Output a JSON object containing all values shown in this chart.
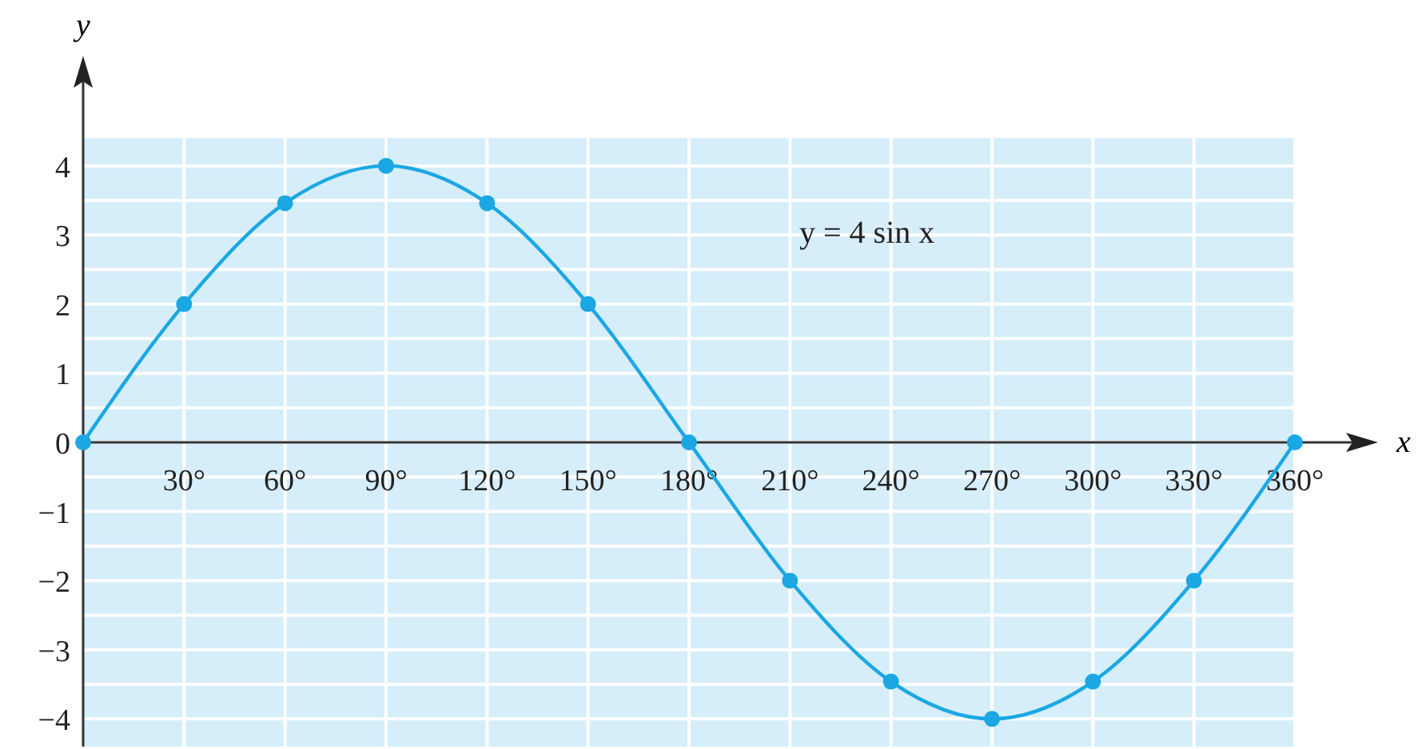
{
  "chart_data": {
    "type": "line",
    "xlabel": "x",
    "ylabel": "y",
    "x": [
      0,
      30,
      60,
      90,
      120,
      150,
      180,
      210,
      240,
      270,
      300,
      330,
      360
    ],
    "series": [
      {
        "color": "#1aa7e4",
        "values": [
          0,
          2,
          3.46,
          4,
          3.46,
          2,
          0,
          -2,
          -3.46,
          -4,
          -3.46,
          -2,
          0
        ]
      }
    ],
    "xlim": [
      0,
      360
    ],
    "ylim": [
      -4.4,
      4.4
    ],
    "xticks": [
      {
        "value": 30,
        "label": "30°"
      },
      {
        "value": 60,
        "label": "60°"
      },
      {
        "value": 90,
        "label": "90°"
      },
      {
        "value": 120,
        "label": "120°"
      },
      {
        "value": 150,
        "label": "150°"
      },
      {
        "value": 180,
        "label": "180°"
      },
      {
        "value": 210,
        "label": "210°"
      },
      {
        "value": 240,
        "label": "240°"
      },
      {
        "value": 270,
        "label": "270°"
      },
      {
        "value": 300,
        "label": "300°"
      },
      {
        "value": 330,
        "label": "330°"
      },
      {
        "value": 360,
        "label": "360°"
      }
    ],
    "yticks": [
      {
        "value": -4,
        "label": "−4"
      },
      {
        "value": -3.5,
        "label": null
      },
      {
        "value": -3,
        "label": "−3"
      },
      {
        "value": -2.5,
        "label": null
      },
      {
        "value": -2,
        "label": "−2"
      },
      {
        "value": -1.5,
        "label": null
      },
      {
        "value": -1,
        "label": "−1"
      },
      {
        "value": -0.5,
        "label": null
      },
      0,
      {
        "value": 0.5,
        "label": null
      },
      1,
      {
        "value": 1.5,
        "label": null
      },
      2,
      {
        "value": 2.5,
        "label": null
      },
      3,
      {
        "value": 3.5,
        "label": null
      },
      4
    ],
    "grid": true,
    "marker": "circle",
    "line_style": "solid",
    "annotations": [
      "y = 4 sin x"
    ]
  }
}
